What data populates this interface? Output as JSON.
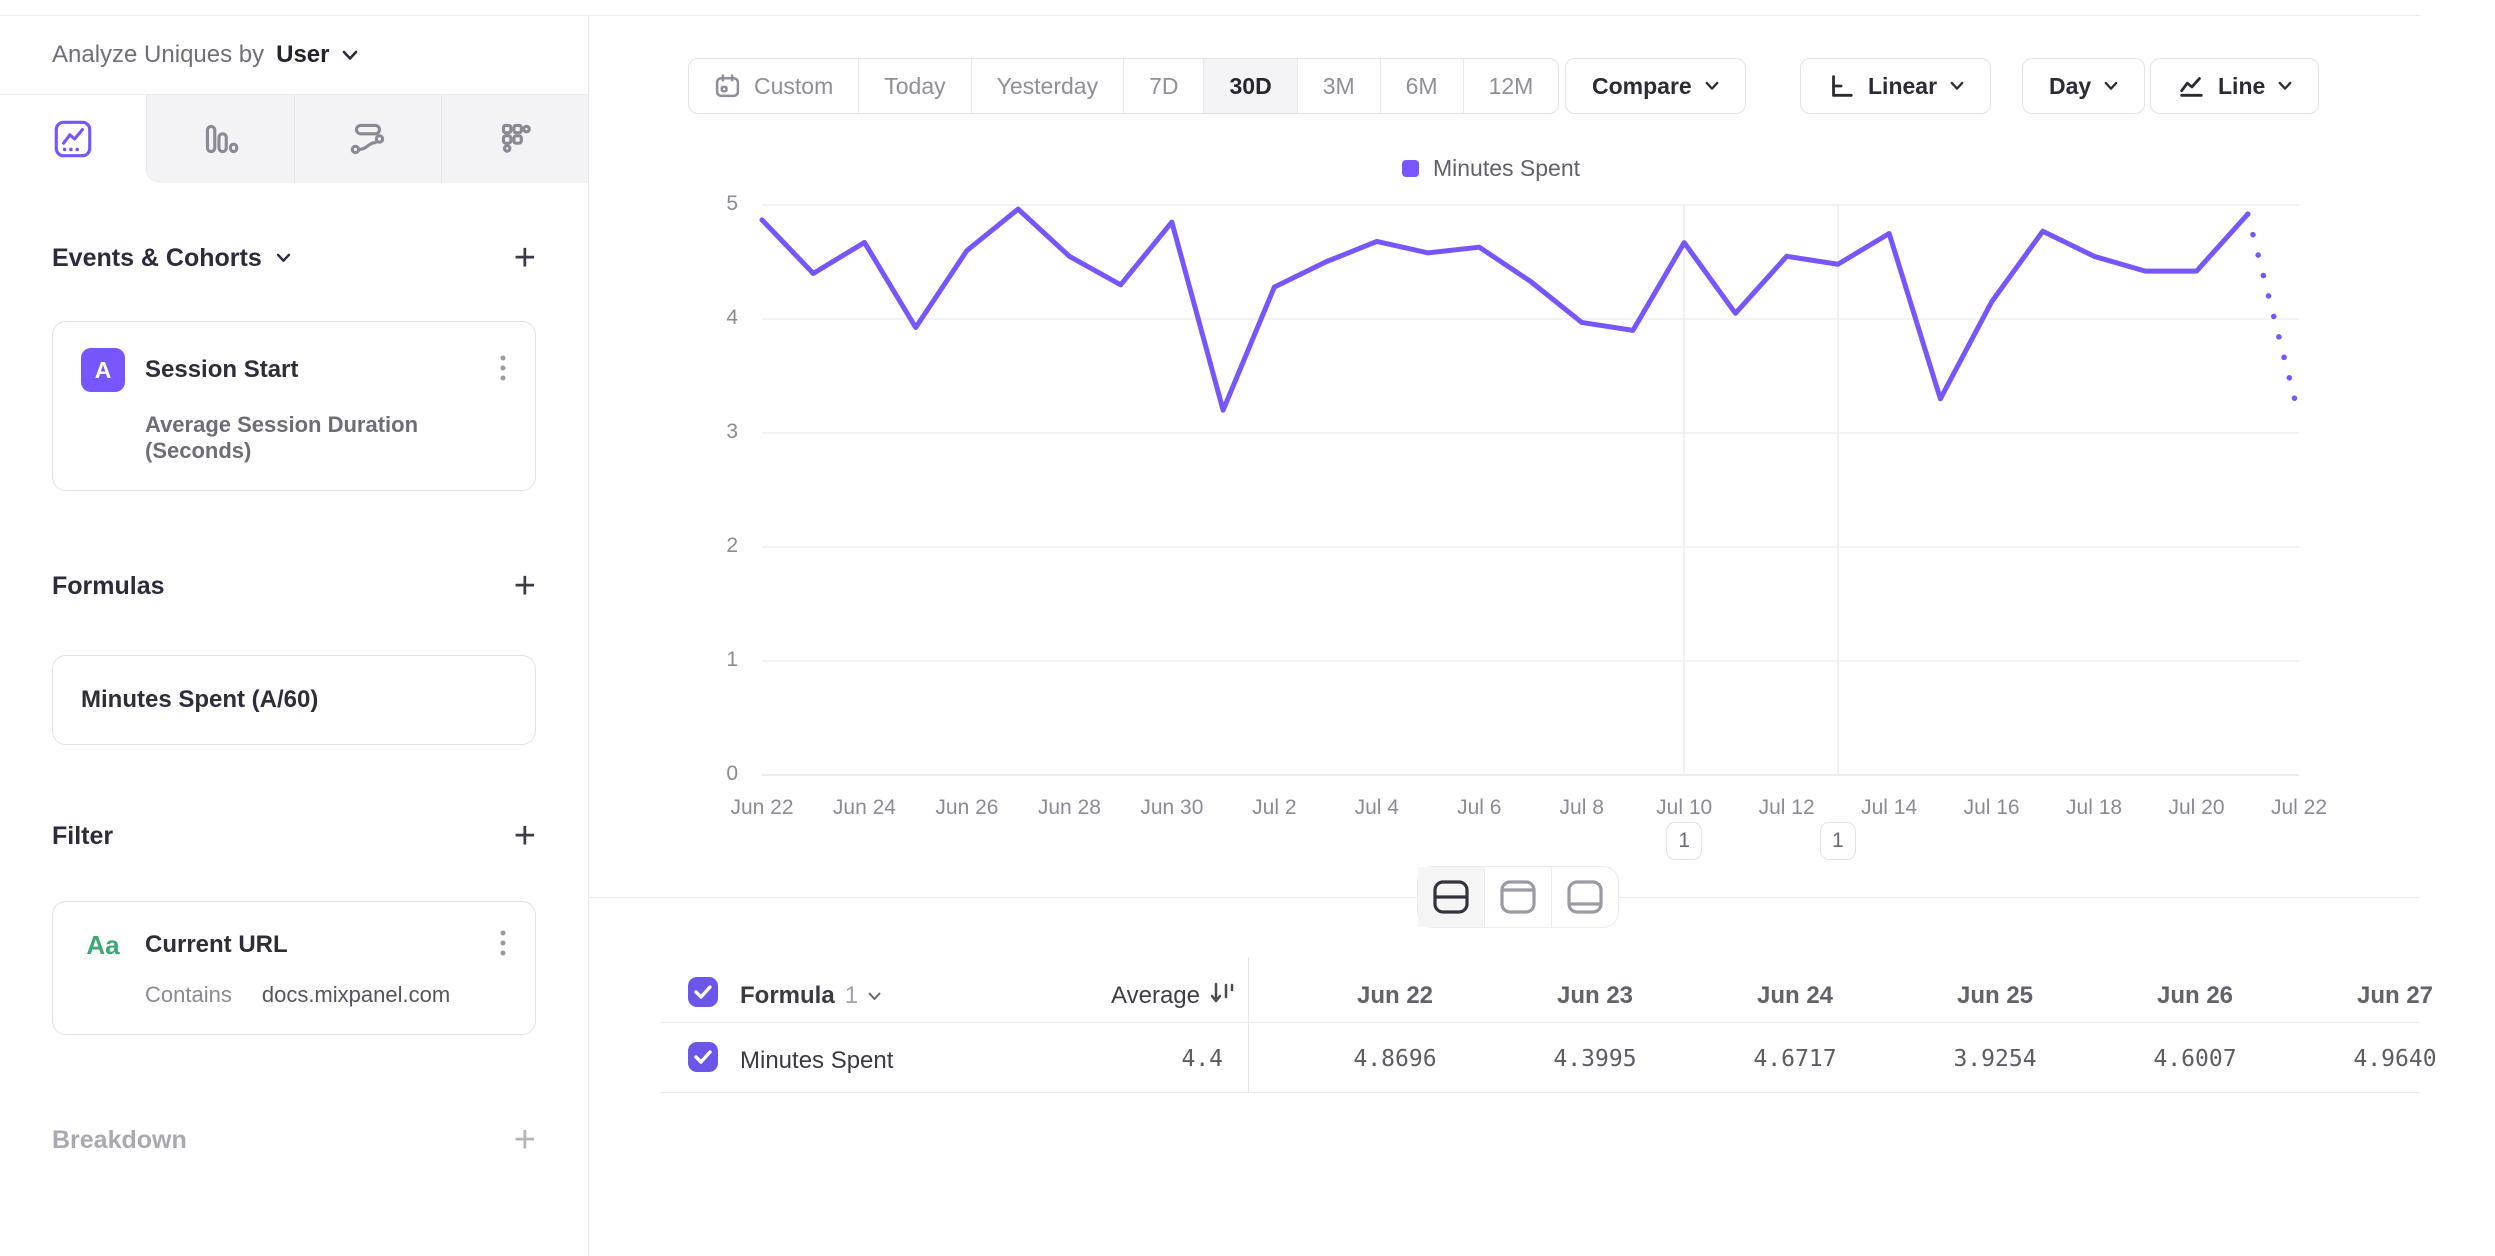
{
  "colors": {
    "accent_purple": "#7856FF",
    "checkbox_purple": "#6C55E9",
    "filter_icon_green": "#3BA974"
  },
  "sidebar": {
    "analyze_prefix": "Analyze Uniques by",
    "analyze_value": "User",
    "events_section": {
      "title": "Events & Cohorts",
      "add": "+",
      "event_card": {
        "badge": "A",
        "title": "Session Start",
        "measurement": "Average Session Duration (Seconds)"
      }
    },
    "formulas_section": {
      "title": "Formulas",
      "add": "+",
      "formula_card": {
        "title": "Minutes Spent (A/60)"
      }
    },
    "filter_section": {
      "title": "Filter",
      "add": "+",
      "filter_card": {
        "badge": "Aa",
        "title": "Current URL",
        "operator": "Contains",
        "value": "docs.mixpanel.com"
      }
    },
    "breakdown_section": {
      "title": "Breakdown",
      "add": "+"
    }
  },
  "toolbar": {
    "date_ranges": [
      "Custom",
      "Today",
      "Yesterday",
      "7D",
      "30D",
      "3M",
      "6M",
      "12M"
    ],
    "active_range": "30D",
    "compare": "Compare",
    "scale": "Linear",
    "granularity": "Day",
    "chart_type": "Line"
  },
  "legend": {
    "label": "Minutes Spent",
    "color": "#7856FF"
  },
  "annotations": [
    {
      "label": "1",
      "x_index": 18
    },
    {
      "label": "1",
      "x_index": 21
    }
  ],
  "chart_data": {
    "type": "line",
    "x": [
      "Jun 22",
      "Jun 23",
      "Jun 24",
      "Jun 25",
      "Jun 26",
      "Jun 27",
      "Jun 28",
      "Jun 29",
      "Jun 30",
      "Jul 1",
      "Jul 2",
      "Jul 3",
      "Jul 4",
      "Jul 5",
      "Jul 6",
      "Jul 7",
      "Jul 8",
      "Jul 9",
      "Jul 10",
      "Jul 11",
      "Jul 12",
      "Jul 13",
      "Jul 14",
      "Jul 15",
      "Jul 16",
      "Jul 17",
      "Jul 18",
      "Jul 19",
      "Jul 20",
      "Jul 21",
      "Jul 22"
    ],
    "series": [
      {
        "name": "Minutes Spent",
        "color": "#7856FF",
        "values": [
          4.8696,
          4.3995,
          4.6717,
          3.9254,
          4.6007,
          4.964,
          4.55,
          4.3,
          4.85,
          3.2,
          4.28,
          4.5,
          4.68,
          4.58,
          4.63,
          4.33,
          3.97,
          3.9,
          4.67,
          4.05,
          4.55,
          4.48,
          4.75,
          3.3,
          4.15,
          4.77,
          4.55,
          4.42,
          4.42,
          4.92,
          3.15
        ]
      }
    ],
    "ylim": [
      0,
      5
    ],
    "yticks": [
      0,
      1,
      2,
      3,
      4,
      5
    ],
    "x_tick_every": 2,
    "dotted_from_index": 29,
    "grid": "horizontal",
    "legend_position": "top-center"
  },
  "table": {
    "header": {
      "series": "Formula",
      "series_index": "1",
      "average": "Average",
      "dates": [
        "Jun 22",
        "Jun 23",
        "Jun 24",
        "Jun 25",
        "Jun 26",
        "Jun 27"
      ]
    },
    "rows": [
      {
        "name": "Minutes Spent",
        "average": "4.4",
        "values": [
          "4.8696",
          "4.3995",
          "4.6717",
          "3.9254",
          "4.6007",
          "4.9640"
        ]
      }
    ]
  }
}
